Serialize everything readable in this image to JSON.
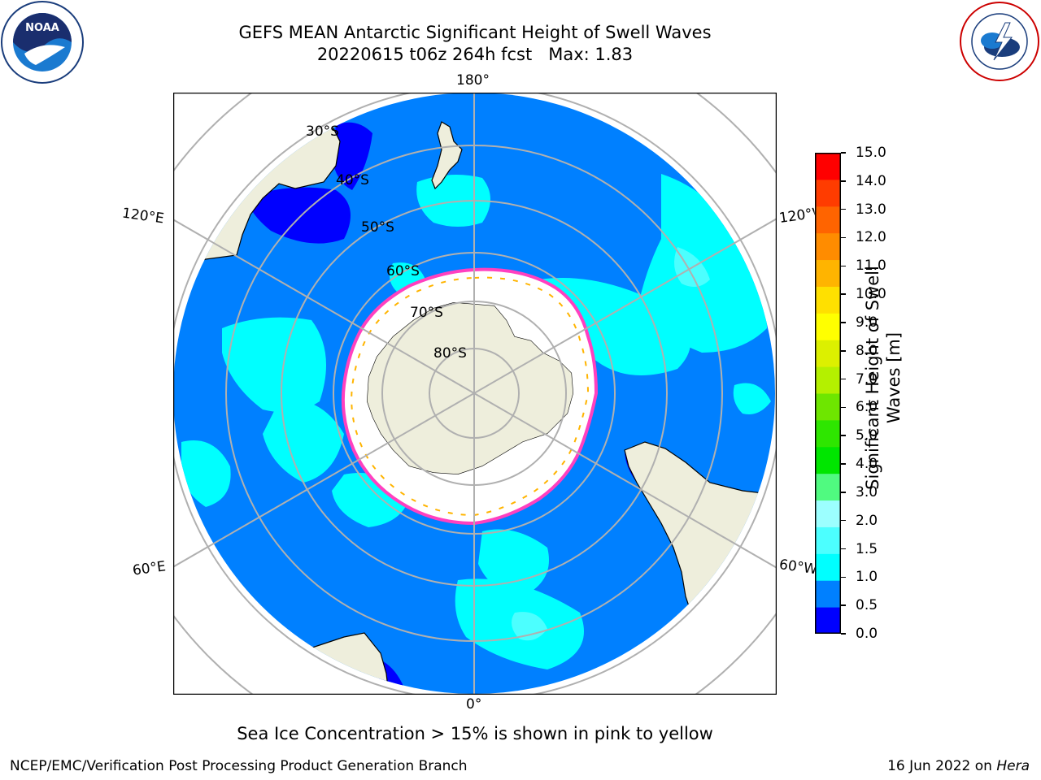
{
  "title": {
    "line1": "GEFS MEAN Antarctic Significant Height of Swell Waves",
    "line2": "20220615 t06z 264h fcst   Max: 1.83"
  },
  "map": {
    "projection": "south-polar-stereographic",
    "ocean_color": "#0080ff",
    "land_color": "#eeeedc",
    "ice_color": "#ffffff",
    "graticule_color": "#b0b0b0",
    "lon_labels": {
      "top": "180°",
      "bottom": "0°",
      "upper_left": "120°E",
      "upper_right": "120°W",
      "lower_left": "60°E",
      "lower_right": "60°W"
    },
    "lat_labels": [
      "30°S",
      "40°S",
      "50°S",
      "60°S",
      "70°S",
      "80°S"
    ]
  },
  "colorbar": {
    "label": "Significant Height of Swell Waves [m]",
    "ticks": [
      "15.0",
      "14.0",
      "13.0",
      "12.0",
      "11.0",
      "10.0",
      "9.0",
      "8.0",
      "7.0",
      "6.0",
      "5.0",
      "4.0",
      "3.0",
      "2.0",
      "1.5",
      "1.0",
      "0.5",
      "0.0"
    ],
    "colors_bottom_to_top": [
      "#0000ff",
      "#0080ff",
      "#00ffff",
      "#4cffff",
      "#9cffff",
      "#50fa80",
      "#00e600",
      "#2ee600",
      "#6ee600",
      "#b4f000",
      "#dcf000",
      "#ffff00",
      "#ffe000",
      "#ffb400",
      "#ff8c00",
      "#ff6400",
      "#ff3c00",
      "#ff0000"
    ]
  },
  "sea_ice_note": "Sea Ice Concentration > 15% is shown in pink to yellow",
  "footer": {
    "left": "NCEP/EMC/Verification Post Processing Product Generation Branch",
    "right_date": "16 Jun 2022 on ",
    "right_machine": "Hera"
  },
  "logos": {
    "left": "NOAA",
    "right": "NATIONAL WEATHER SERVICE"
  }
}
